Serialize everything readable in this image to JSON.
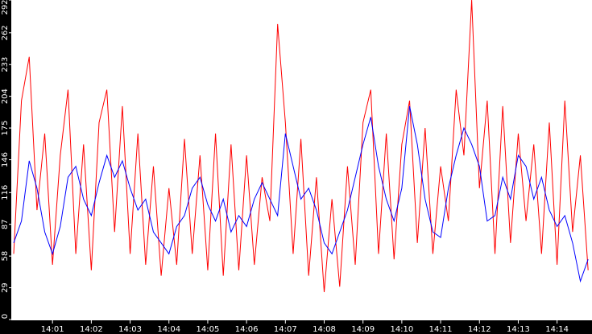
{
  "chart_data": {
    "type": "line",
    "x": [
      0,
      0.2,
      0.4,
      0.6,
      0.8,
      1,
      1.2,
      1.4,
      1.6,
      1.8,
      2,
      2.2,
      2.4,
      2.6,
      2.8,
      3,
      3.2,
      3.4,
      3.6,
      3.8,
      4,
      4.2,
      4.4,
      4.6,
      4.8,
      5,
      5.2,
      5.4,
      5.6,
      5.8,
      6,
      6.2,
      6.4,
      6.6,
      6.8,
      7,
      7.2,
      7.4,
      7.6,
      7.8,
      8,
      8.2,
      8.4,
      8.6,
      8.8,
      9,
      9.2,
      9.4,
      9.6,
      9.8,
      10,
      10.2,
      10.4,
      10.6,
      10.8,
      11,
      11.2,
      11.4,
      11.6,
      11.8,
      12,
      12.2,
      12.4,
      12.6,
      12.8,
      13,
      13.2,
      13.4,
      13.6,
      13.8,
      14,
      14.2,
      14.4,
      14.6,
      14.8
    ],
    "series": [
      {
        "color": "#ff0000",
        "values": [
          60,
          200,
          240,
          100,
          170,
          50,
          150,
          210,
          60,
          160,
          45,
          180,
          210,
          80,
          195,
          60,
          170,
          50,
          140,
          40,
          120,
          50,
          165,
          60,
          150,
          45,
          170,
          40,
          160,
          45,
          150,
          50,
          130,
          90,
          270,
          180,
          60,
          165,
          40,
          130,
          25,
          110,
          30,
          140,
          50,
          180,
          210,
          60,
          170,
          55,
          160,
          200,
          70,
          175,
          60,
          140,
          90,
          210,
          150,
          292,
          120,
          200,
          60,
          195,
          70,
          170,
          90,
          160,
          60,
          180,
          50,
          200,
          80,
          150,
          45
        ]
      },
      {
        "color": "#0000ff",
        "values": [
          70,
          90,
          145,
          120,
          80,
          60,
          85,
          130,
          140,
          110,
          95,
          125,
          150,
          130,
          145,
          120,
          100,
          110,
          80,
          70,
          60,
          85,
          95,
          120,
          130,
          105,
          90,
          110,
          80,
          95,
          85,
          110,
          125,
          110,
          95,
          170,
          140,
          110,
          120,
          100,
          70,
          60,
          80,
          100,
          130,
          160,
          185,
          140,
          110,
          90,
          120,
          195,
          160,
          110,
          80,
          75,
          120,
          150,
          175,
          160,
          140,
          90,
          95,
          130,
          110,
          150,
          140,
          110,
          130,
          100,
          85,
          95,
          70,
          35,
          55
        ]
      }
    ],
    "xlim": [
      0,
      14.9
    ],
    "xticks": [
      {
        "value": 1,
        "label": "14:01"
      },
      {
        "value": 2,
        "label": "14:02"
      },
      {
        "value": 3,
        "label": "14:03"
      },
      {
        "value": 4,
        "label": "14:04"
      },
      {
        "value": 5,
        "label": "14:05"
      },
      {
        "value": 6,
        "label": "14:06"
      },
      {
        "value": 7,
        "label": "14:07"
      },
      {
        "value": 8,
        "label": "14:08"
      },
      {
        "value": 9,
        "label": "14:09"
      },
      {
        "value": 10,
        "label": "14:10"
      },
      {
        "value": 11,
        "label": "14:11"
      },
      {
        "value": 12,
        "label": "14:12"
      },
      {
        "value": 13,
        "label": "14:13"
      },
      {
        "value": 14,
        "label": "14:14"
      }
    ],
    "ylim": [
      0,
      292
    ],
    "yticks": [
      0,
      29,
      58,
      87,
      116,
      146,
      175,
      204,
      233,
      262,
      292
    ]
  }
}
